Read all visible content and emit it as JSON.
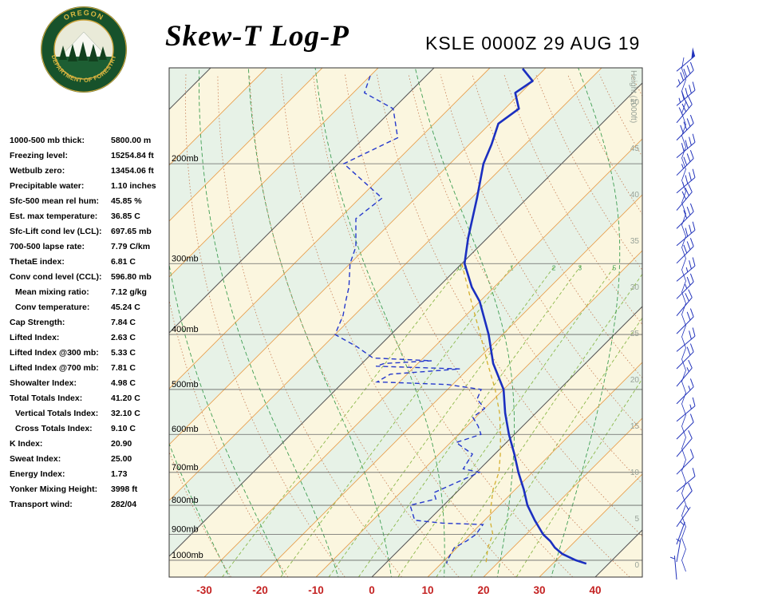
{
  "header": {
    "title": "Skew-T Log-P",
    "station_line": "KSLE 0000Z 29 AUG 19",
    "logo": {
      "ring_top": "OREGON",
      "ring_bottom": "DEPARTMENT OF FORESTRY"
    }
  },
  "indices": [
    {
      "label": "1000-500 mb thick:",
      "value": "5800.00 m",
      "indent": false
    },
    {
      "label": "Freezing level:",
      "value": "15254.84 ft",
      "indent": false
    },
    {
      "label": "Wetbulb zero:",
      "value": "13454.06 ft",
      "indent": false
    },
    {
      "label": "Precipitable water:",
      "value": "1.10 inches",
      "indent": false
    },
    {
      "label": "Sfc-500 mean rel hum:",
      "value": "45.85 %",
      "indent": false
    },
    {
      "label": "Est. max temperature:",
      "value": "36.85 C",
      "indent": false
    },
    {
      "label": "Sfc-Lift cond lev (LCL):",
      "value": "697.65 mb",
      "indent": false
    },
    {
      "label": "700-500 lapse rate:",
      "value": "7.79 C/km",
      "indent": false
    },
    {
      "label": "ThetaE index:",
      "value": "6.81 C",
      "indent": false
    },
    {
      "label": "Conv cond level (CCL):",
      "value": "596.80 mb",
      "indent": false
    },
    {
      "label": "Mean mixing ratio:",
      "value": "7.12 g/kg",
      "indent": true
    },
    {
      "label": "Conv temperature:",
      "value": "45.24 C",
      "indent": true
    },
    {
      "label": "Cap Strength:",
      "value": "7.84 C",
      "indent": false
    },
    {
      "label": "Lifted Index:",
      "value": "2.63 C",
      "indent": false
    },
    {
      "label": "Lifted Index @300 mb:",
      "value": "5.33 C",
      "indent": false
    },
    {
      "label": "Lifted Index @700 mb:",
      "value": "7.81 C",
      "indent": false
    },
    {
      "label": "Showalter Index:",
      "value": "4.98 C",
      "indent": false
    },
    {
      "label": "Total Totals Index:",
      "value": "41.20 C",
      "indent": false
    },
    {
      "label": "Vertical Totals Index:",
      "value": "32.10 C",
      "indent": true
    },
    {
      "label": "Cross Totals Index:",
      "value": "9.10 C",
      "indent": true
    },
    {
      "label": "K Index:",
      "value": "20.90",
      "indent": false
    },
    {
      "label": "Sweat Index:",
      "value": "25.00",
      "indent": false
    },
    {
      "label": "Energy Index:",
      "value": "1.73",
      "indent": false
    },
    {
      "label": "Yonker Mixing Height:",
      "value": "3998 ft",
      "indent": false
    },
    {
      "label": "Transport wind:",
      "value": "282/04",
      "indent": false
    }
  ],
  "chart_data": {
    "type": "skewt-log-p",
    "pressure_axis": {
      "labels": [
        "200mb",
        "300mb",
        "400mb",
        "500mb",
        "600mb",
        "700mb",
        "800mb",
        "900mb",
        "1000mb"
      ],
      "values": [
        200,
        300,
        400,
        500,
        600,
        700,
        800,
        900,
        1000
      ],
      "range_mb": [
        135,
        1070
      ]
    },
    "temp_axis": {
      "ticks": [
        -30,
        -20,
        -10,
        0,
        10,
        20,
        30,
        40
      ],
      "unit": "C"
    },
    "height_axis": {
      "title": "Height (1000ft)",
      "ticks": [
        50,
        45,
        40,
        35,
        30,
        25,
        20,
        15,
        10,
        5,
        0
      ]
    },
    "isotherm_step_c": 10,
    "temperature_profile": {
      "pressure": [
        136,
        143,
        150,
        160,
        170,
        185,
        200,
        230,
        270,
        300,
        330,
        350,
        400,
        450,
        500,
        550,
        600,
        650,
        700,
        750,
        800,
        850,
        900,
        925,
        950,
        975,
        1000,
        1014
      ],
      "temp": [
        -64,
        -60,
        -61,
        -57.5,
        -58.5,
        -56,
        -54,
        -49,
        -43.5,
        -39.5,
        -34,
        -30,
        -22.5,
        -16.5,
        -10,
        -5.5,
        -1,
        3.5,
        7.5,
        11.5,
        15,
        19,
        23,
        25.5,
        27.5,
        30,
        33.5,
        36
      ]
    },
    "dewpoint_profile": {
      "pressure": [
        140,
        150,
        160,
        180,
        200,
        230,
        250,
        280,
        300,
        330,
        350,
        370,
        400,
        420,
        440,
        445,
        450,
        455,
        460,
        470,
        485,
        490,
        500,
        520,
        540,
        560,
        580,
        600,
        620,
        650,
        690,
        700,
        760,
        780,
        800,
        850,
        860,
        865,
        900,
        925,
        950,
        975,
        1000,
        1014
      ],
      "temp": [
        -90,
        -88,
        -80,
        -74,
        -79,
        -66,
        -67,
        -62,
        -60,
        -56,
        -54,
        -52,
        -50,
        -44,
        -39,
        -28,
        -36,
        -37,
        -21.5,
        -33,
        -34,
        -21,
        -14,
        -13,
        -10,
        -10.5,
        -8,
        -6,
        -9,
        -4,
        -3,
        0.5,
        -4,
        -2.5,
        -6,
        -2.5,
        3,
        10.5,
        11,
        10.5,
        9.5,
        10,
        10.5,
        11
      ]
    },
    "wetbulb_profile": {
      "pressure": [
        300,
        350,
        400,
        450,
        500,
        550,
        600,
        650,
        700,
        750,
        800,
        850,
        900,
        950,
        1000,
        1014
      ],
      "temp": [
        -40,
        -31.5,
        -24,
        -17.5,
        -11.5,
        -6.5,
        -2.5,
        1,
        4,
        6,
        8.5,
        11,
        14,
        15.5,
        17.5,
        18
      ]
    },
    "mixing_ratio_lines_gkg": [
      0.4,
      1,
      2,
      3,
      5,
      8,
      12,
      20
    ],
    "dry_adiabats_theta_c": [
      -30,
      -20,
      -10,
      0,
      10,
      20,
      30,
      40,
      50,
      60,
      70,
      80,
      90,
      100,
      110,
      120,
      130,
      140,
      150
    ],
    "moist_adiabats_thetaw_c": [
      -30,
      -20,
      -10,
      0,
      10,
      20,
      30
    ],
    "winds": [
      {
        "p": 133,
        "dir": 50,
        "spd": 48
      },
      {
        "p": 142,
        "dir": 45,
        "spd": 45
      },
      {
        "p": 153,
        "dir": 50,
        "spd": 45
      },
      {
        "p": 164,
        "dir": 40,
        "spd": 40
      },
      {
        "p": 176,
        "dir": 45,
        "spd": 40
      },
      {
        "p": 189,
        "dir": 50,
        "spd": 38
      },
      {
        "p": 203,
        "dir": 45,
        "spd": 35
      },
      {
        "p": 218,
        "dir": 50,
        "spd": 35
      },
      {
        "p": 234,
        "dir": 40,
        "spd": 32
      },
      {
        "p": 252,
        "dir": 45,
        "spd": 30
      },
      {
        "p": 270,
        "dir": 50,
        "spd": 30
      },
      {
        "p": 290,
        "dir": 45,
        "spd": 28
      },
      {
        "p": 312,
        "dir": 50,
        "spd": 25
      },
      {
        "p": 335,
        "dir": 45,
        "spd": 25
      },
      {
        "p": 359,
        "dir": 40,
        "spd": 22
      },
      {
        "p": 386,
        "dir": 45,
        "spd": 20
      },
      {
        "p": 415,
        "dir": 50,
        "spd": 20
      },
      {
        "p": 445,
        "dir": 45,
        "spd": 18
      },
      {
        "p": 478,
        "dir": 40,
        "spd": 15
      },
      {
        "p": 513,
        "dir": 45,
        "spd": 15
      },
      {
        "p": 551,
        "dir": 50,
        "spd": 15
      },
      {
        "p": 592,
        "dir": 45,
        "spd": 12
      },
      {
        "p": 636,
        "dir": 40,
        "spd": 10
      },
      {
        "p": 683,
        "dir": 45,
        "spd": 10
      },
      {
        "p": 733,
        "dir": 50,
        "spd": 8
      },
      {
        "p": 787,
        "dir": 40,
        "spd": 8
      },
      {
        "p": 845,
        "dir": 35,
        "spd": 5
      },
      {
        "p": 908,
        "dir": 20,
        "spd": 5
      },
      {
        "p": 975,
        "dir": 10,
        "spd": 4
      },
      {
        "p": 1047,
        "dir": 355,
        "spd": 3
      }
    ],
    "colors": {
      "temperature": "#1b2fc0",
      "dewpoint": "#2538cc",
      "wetbulb": "#d4af2f",
      "isotherm": "#e8a050",
      "isotherm_major": "#555555",
      "dry_adiabat": "#c77d55",
      "moist_adiabat": "#3f9e52",
      "mixing_ratio": "#8bb84a",
      "band_green": "#e7f2e7",
      "band_cream": "#fbf6df",
      "axis_red": "#c42222",
      "height_gray": "#98a298",
      "wind": "#2233bb",
      "grid": "#666666"
    }
  }
}
